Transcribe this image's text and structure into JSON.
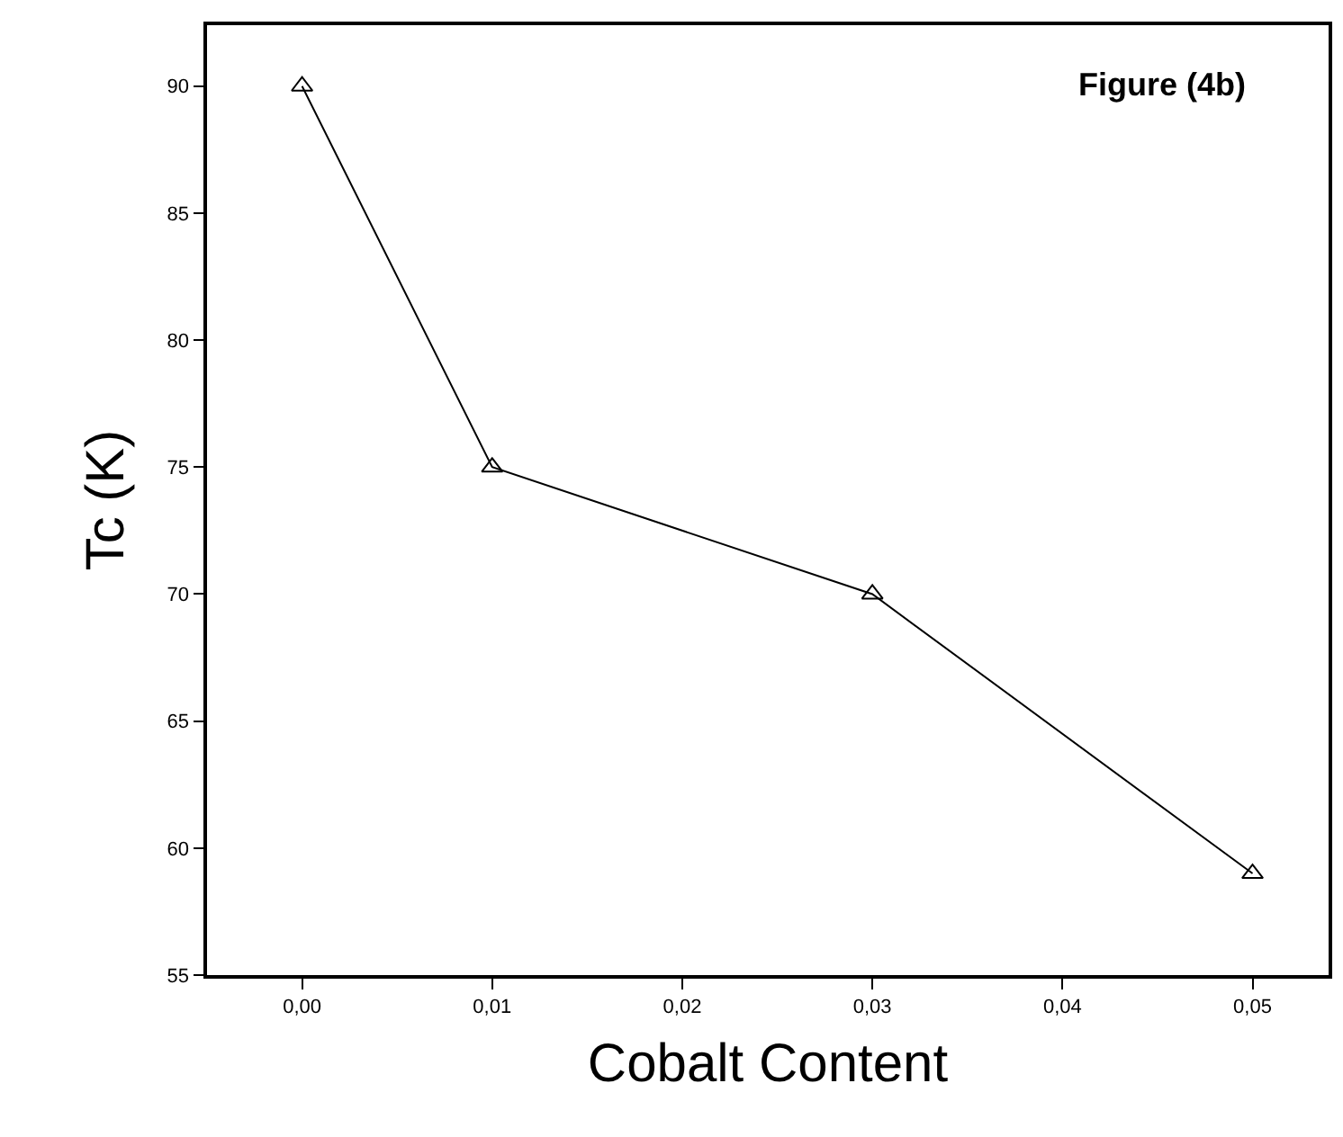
{
  "chart_data": {
    "type": "line",
    "xlabel": "Cobalt Content",
    "ylabel": "Tc (K)",
    "annotations": [
      "Figure (4b)"
    ],
    "x": [
      0.0,
      0.01,
      0.03,
      0.05
    ],
    "series": [
      {
        "color": "#000000",
        "values": [
          90,
          75,
          70,
          59
        ]
      }
    ],
    "xlim": [
      -0.005,
      0.054
    ],
    "ylim": [
      55,
      92.4
    ],
    "xticks": [
      {
        "value": 0,
        "label": "0,00"
      },
      {
        "value": 0.01,
        "label": "0,01"
      },
      {
        "value": 0.02,
        "label": "0,02"
      },
      {
        "value": 0.03,
        "label": "0,03"
      },
      {
        "value": 0.04,
        "label": "0,04"
      },
      {
        "value": 0.05,
        "label": "0,05"
      }
    ],
    "yticks": [
      55,
      60,
      65,
      70,
      75,
      80,
      85,
      90
    ],
    "marker": "triangle",
    "line_style": "solid"
  }
}
